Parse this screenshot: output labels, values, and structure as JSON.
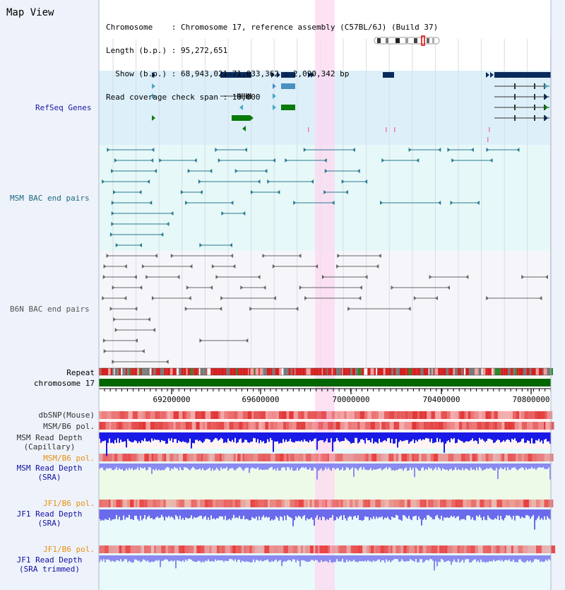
{
  "view_title": "Map View",
  "info": {
    "chromosome_line": "Chromosome    : Chromosome 17, reference assembly (C57BL/6J) (Build 37)",
    "length_line": "Length (b.p.) : 95,272,651",
    "show_line": "  Show (b.p.) : 68,943,021-71,033,362 : 2,090,342 bp",
    "coverage_line": "Read coverage check span : 10,000"
  },
  "tracks": {
    "refseq": "RefSeq Genes",
    "msm_bac": "MSM BAC end pairs",
    "b6n_bac": "B6N BAC end pairs",
    "repeat": "Repeat",
    "chromosome": "chromosome 17",
    "dbsnp": "dbSNP(Mouse)",
    "msm_b6_pol_1": "MSM/B6 pol.",
    "msm_depth_cap_1": "MSM Read Depth",
    "msm_depth_cap_2": "(Capillary)",
    "msm_b6_pol_2": "MSM/B6 pol.",
    "msm_depth_sra_1": "MSM Read Depth",
    "msm_depth_sra_2": "(SRA)",
    "jf1_b6_pol_1": "JF1/B6 pol.",
    "jf1_depth_sra_1": "JF1 Read Depth",
    "jf1_depth_sra_2": "(SRA)",
    "jf1_b6_pol_2": "JF1/B6 pol.",
    "jf1_depth_trim_1": "JF1 Read Depth",
    "jf1_depth_trim_2": "(SRA trimmed)"
  },
  "axis": {
    "ticks": [
      "69200000",
      "69600000",
      "70000000",
      "70400000",
      "70800000"
    ]
  },
  "colors": {
    "left_panel": "#eef2fa",
    "refseq_bg": "#ddf0fa",
    "msm_bg": "#e6f8f8",
    "b6n_bg": "#f6f6fa",
    "lower_bg": "#e8fafa",
    "highlight": "#fcd8f0",
    "refseq_label": "#1a1aa0",
    "msm_label": "#1a6a80",
    "b6n_label": "#555555",
    "gene_navy": "#0a2a5c",
    "gene_blue": "#4a8fc0",
    "gene_teal": "#4aa8c0",
    "gene_green": "#0a7a0a",
    "chrom_green": "#006600",
    "pol_red": "#e03030",
    "depth_blue": "#1a1ae0",
    "depth_light": "#8080f0",
    "pol_label_orange": "#e89010",
    "depth_label_navy": "#1010a0"
  }
}
